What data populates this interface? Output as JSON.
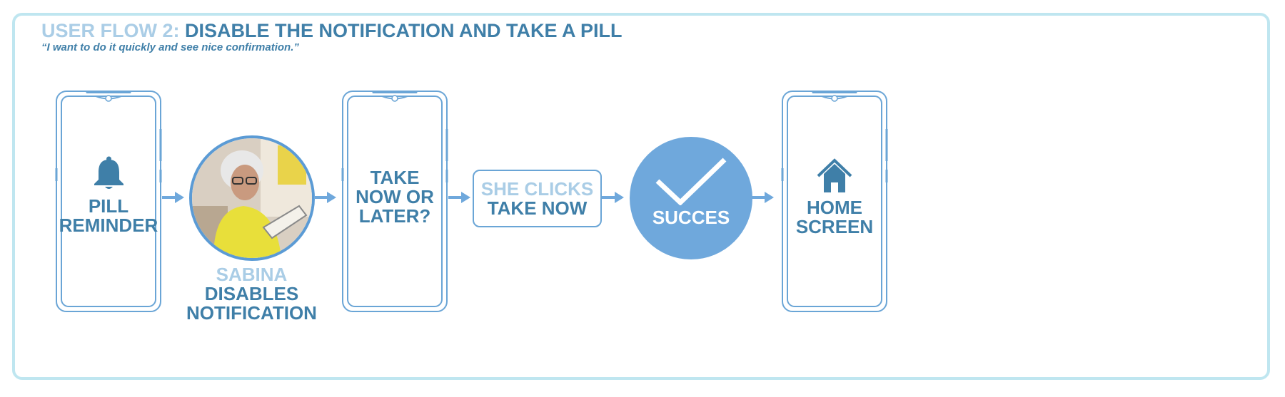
{
  "header": {
    "title_prefix": "USER FLOW 2:",
    "title_main": "DISABLE THE NOTIFICATION AND TAKE A PILL",
    "subtitle": "“I want to do it quickly and see nice confirmation.”"
  },
  "flow": {
    "step1": {
      "line1": "PILL",
      "line2": "REMINDER",
      "icon": "bell-icon"
    },
    "step2": {
      "name": "SABINA",
      "line1": "DISABLES",
      "line2": "NOTIFICATION"
    },
    "step3": {
      "line1": "TAKE",
      "line2": "NOW OR",
      "line3": "LATER?"
    },
    "step4": {
      "line1": "SHE CLICKS",
      "line2": "TAKE NOW"
    },
    "step5": {
      "label": "SUCCES",
      "icon": "checkmark-icon"
    },
    "step6": {
      "line1": "HOME",
      "line2": "SCREEN",
      "icon": "home-icon"
    }
  },
  "colors": {
    "frame": "#bfe6f0",
    "primary_text": "#3f7fa8",
    "accent_text": "#aacde6",
    "phone_outline": "#6aa5d6",
    "arrow": "#6fa8dc",
    "success_fill": "#6fa8dc"
  }
}
